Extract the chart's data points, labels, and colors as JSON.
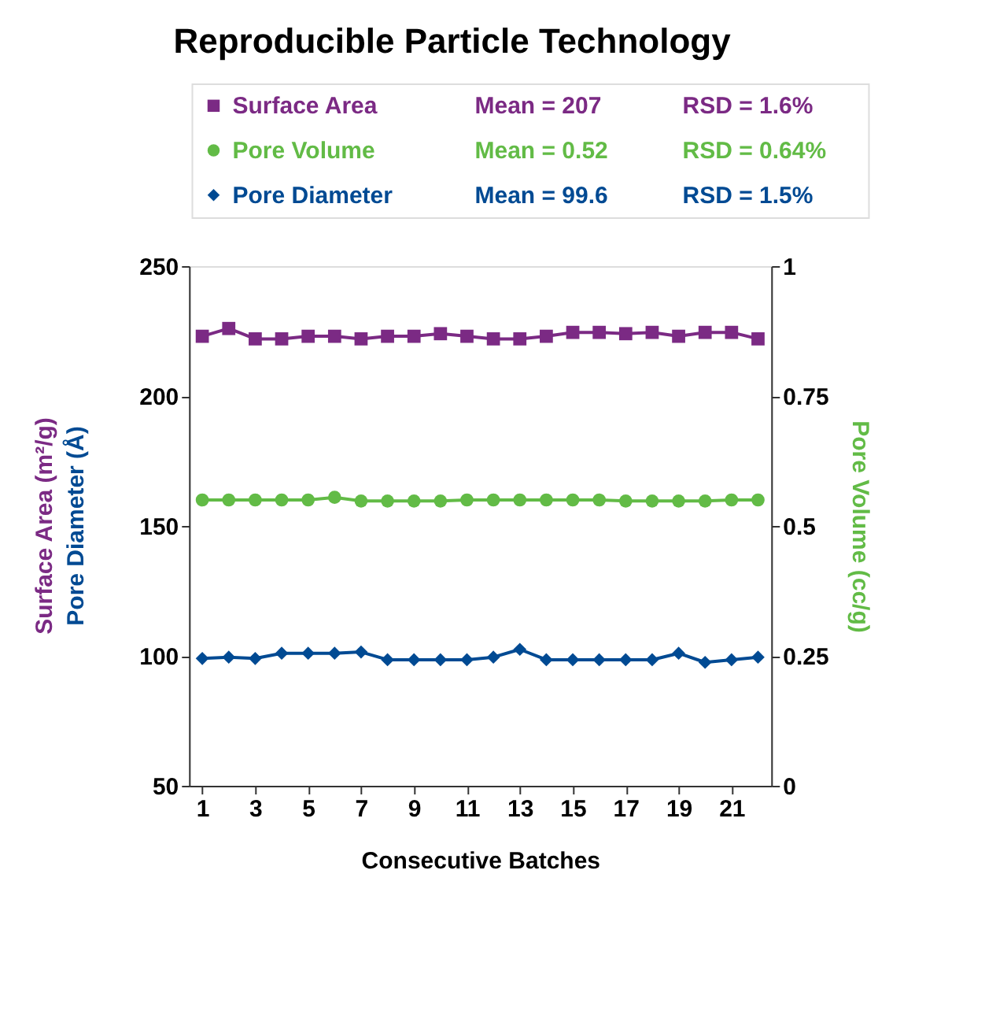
{
  "chart_data": {
    "type": "line",
    "title": "Reproducible Particle Technology",
    "xlabel": "Consecutive Batches",
    "ylabel": "Surface Area (m²/g)",
    "y2label": "Pore Volume (cc/g)",
    "x": [
      1,
      2,
      3,
      4,
      5,
      6,
      7,
      8,
      9,
      10,
      11,
      12,
      13,
      14,
      15,
      16,
      17,
      18,
      19,
      20,
      21,
      22
    ],
    "xlim": [
      0.5,
      22.5
    ],
    "xticks": [
      1,
      3,
      5,
      7,
      9,
      11,
      13,
      15,
      17,
      19,
      21
    ],
    "ylim": [
      50,
      250
    ],
    "yticks": [
      50,
      100,
      150,
      200,
      250
    ],
    "y2lim": [
      0,
      1
    ],
    "y2ticks": [
      0,
      0.25,
      0.5,
      0.75,
      1
    ],
    "series": [
      {
        "name": "Surface Area",
        "color": "#7b2a84",
        "marker": "square",
        "values": [
          223,
          226,
          222,
          222,
          223,
          223,
          222,
          223,
          223,
          224,
          223,
          222,
          222,
          223,
          224.5,
          224.5,
          224,
          224.5,
          223,
          224.5,
          224.5,
          222
        ]
      },
      {
        "name": "Pore Volume",
        "color": "#62bb46",
        "marker": "circle",
        "axis": "y2",
        "values": [
          0.55,
          0.55,
          0.55,
          0.55,
          0.55,
          0.555,
          0.548,
          0.548,
          0.548,
          0.548,
          0.55,
          0.55,
          0.55,
          0.55,
          0.55,
          0.55,
          0.548,
          0.548,
          0.548,
          0.548,
          0.55,
          0.55
        ]
      },
      {
        "name": "Pore Diameter",
        "color": "#004a93",
        "marker": "diamond",
        "values": [
          99,
          99.5,
          99,
          101,
          101,
          101,
          101.5,
          98.5,
          98.5,
          98.5,
          98.5,
          99.5,
          102.5,
          98.5,
          98.5,
          98.5,
          98.5,
          98.5,
          101,
          97.5,
          98.5,
          99.5
        ]
      }
    ],
    "annotations": [
      "Mean = 207",
      "RSD = 1.6%",
      "Mean = 0.52",
      "RSD = 0.64%",
      "Mean = 99.6",
      "RSD = 1.5%",
      "Pore Diameter (Å)"
    ],
    "legend": "top",
    "grid": false,
    "line_style": "solid"
  }
}
